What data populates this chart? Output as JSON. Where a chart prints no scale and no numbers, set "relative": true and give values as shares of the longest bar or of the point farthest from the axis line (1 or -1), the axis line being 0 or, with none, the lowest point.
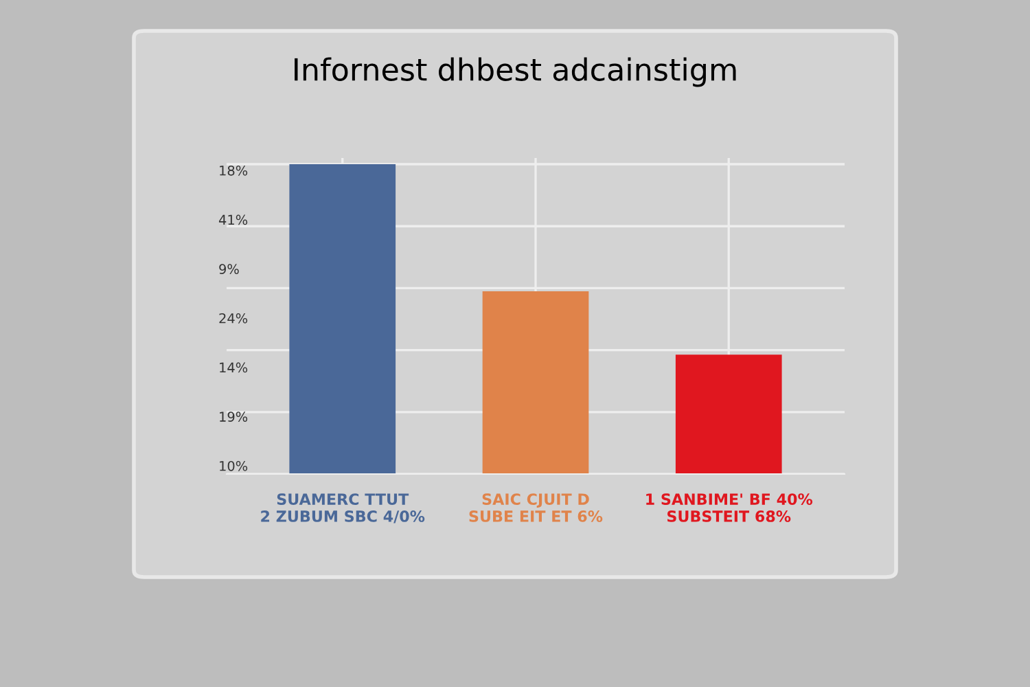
{
  "chart_data": {
    "type": "bar",
    "title": "Infornest dhbest adcainstigm",
    "categories": [
      "SUAMERC TTUT\n2 ZUBUM SBC 4/0%",
      "SAIC CJUIT D\nSUBE EIT ET 6%",
      "1 SANBIME' BF 40%\nSUBSTEIT 68%"
    ],
    "values": [
      1,
      0.59,
      0.385
    ],
    "colors": [
      "#4a6898",
      "#e0834a",
      "#e0171f"
    ],
    "relative": true,
    "grid": true,
    "annotations": [
      "18%",
      "41%",
      "9%",
      "24%",
      "14%",
      "19%",
      "10%"
    ]
  }
}
